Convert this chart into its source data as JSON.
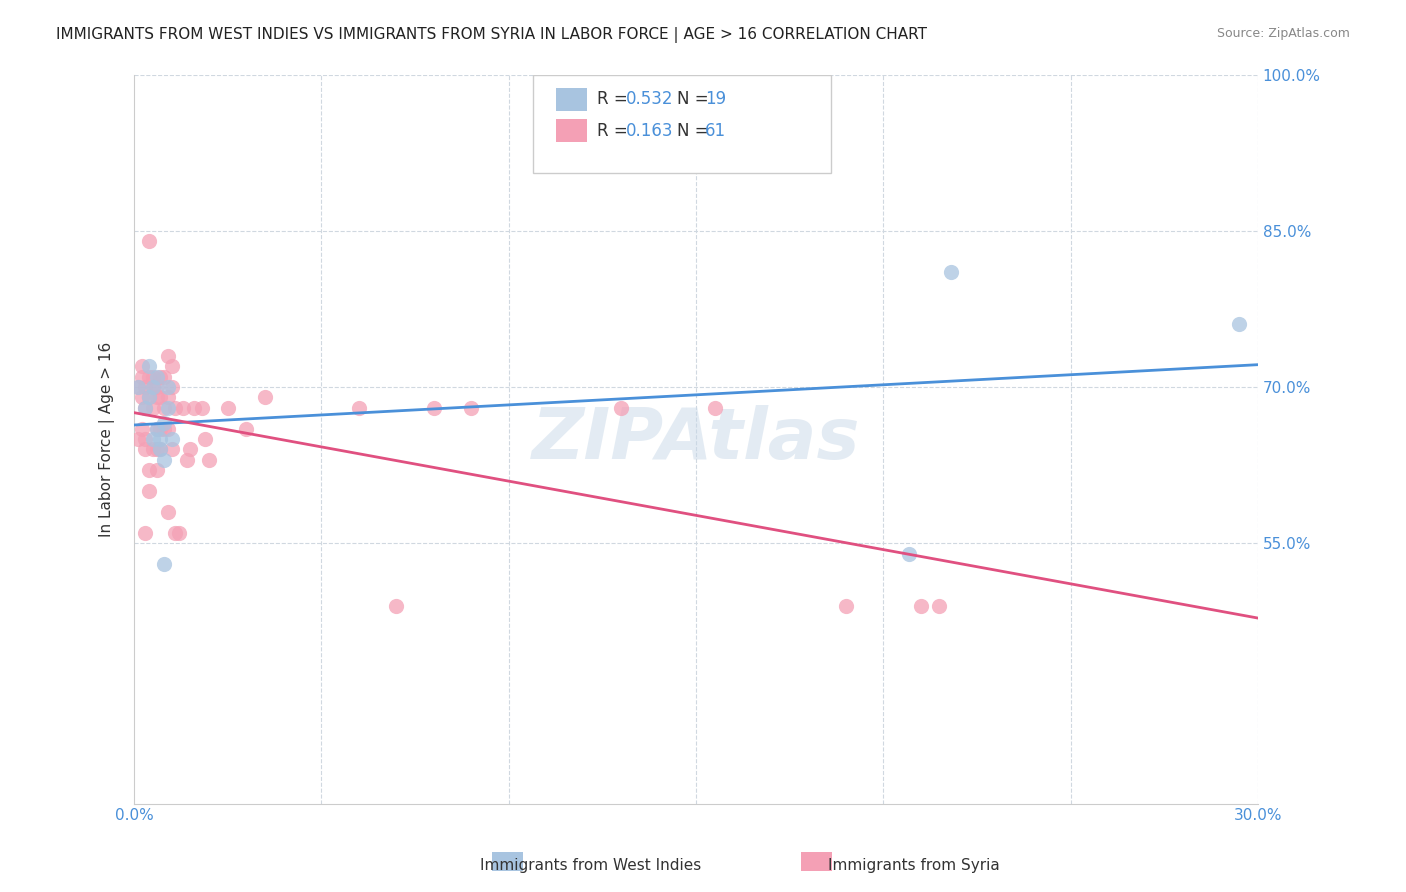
{
  "title": "IMMIGRANTS FROM WEST INDIES VS IMMIGRANTS FROM SYRIA IN LABOR FORCE | AGE > 16 CORRELATION CHART",
  "source": "Source: ZipAtlas.com",
  "xlabel_bottom": "",
  "ylabel": "In Labor Force | Age > 16",
  "x_ticks": [
    0.0,
    0.05,
    0.1,
    0.15,
    0.2,
    0.25,
    0.3
  ],
  "x_tick_labels": [
    "0.0%",
    "",
    "",
    "",
    "",
    "",
    "30.0%"
  ],
  "x_ticklabels_show": [
    0,
    0.05,
    0.1,
    0.15,
    0.2,
    0.25,
    0.3
  ],
  "y_ticks": [
    0.3,
    0.4,
    0.5,
    0.55,
    0.6,
    0.65,
    0.7,
    0.75,
    0.8,
    0.85,
    0.9,
    0.95,
    1.0
  ],
  "y_tick_labels_right": [
    "",
    "",
    "",
    "55.0%",
    "",
    "",
    "70.0%",
    "",
    "",
    "85.0%",
    "",
    "",
    "100.0%"
  ],
  "xlim": [
    0.0,
    0.3
  ],
  "ylim": [
    0.3,
    1.0
  ],
  "r_west_indies": 0.532,
  "n_west_indies": 19,
  "r_syria": 0.163,
  "n_syria": 61,
  "legend_label_1": "Immigrants from West Indies",
  "legend_label_2": "Immigrants from Syria",
  "color_west_indies": "#a8c4e0",
  "color_syria": "#f4a0b5",
  "line_color_west_indies": "#4a90d9",
  "line_color_syria": "#e05080",
  "watermark": "ZIPAtlas",
  "watermark_color": "#c8d8e8",
  "west_indies_x": [
    0.001,
    0.003,
    0.004,
    0.004,
    0.005,
    0.005,
    0.006,
    0.006,
    0.007,
    0.007,
    0.008,
    0.008,
    0.008,
    0.009,
    0.009,
    0.01,
    0.207,
    0.218,
    0.295
  ],
  "west_indies_y": [
    0.7,
    0.68,
    0.72,
    0.69,
    0.7,
    0.65,
    0.66,
    0.71,
    0.65,
    0.64,
    0.665,
    0.63,
    0.53,
    0.68,
    0.7,
    0.65,
    0.54,
    0.81,
    0.76
  ],
  "syria_x": [
    0.001,
    0.001,
    0.002,
    0.002,
    0.002,
    0.002,
    0.003,
    0.003,
    0.003,
    0.003,
    0.003,
    0.004,
    0.004,
    0.004,
    0.004,
    0.004,
    0.005,
    0.005,
    0.005,
    0.005,
    0.006,
    0.006,
    0.006,
    0.006,
    0.006,
    0.007,
    0.007,
    0.007,
    0.007,
    0.008,
    0.008,
    0.008,
    0.009,
    0.009,
    0.009,
    0.009,
    0.01,
    0.01,
    0.01,
    0.011,
    0.011,
    0.012,
    0.013,
    0.014,
    0.015,
    0.016,
    0.018,
    0.019,
    0.02,
    0.025,
    0.03,
    0.035,
    0.06,
    0.07,
    0.08,
    0.09,
    0.13,
    0.155,
    0.19,
    0.21,
    0.215
  ],
  "syria_y": [
    0.7,
    0.65,
    0.71,
    0.72,
    0.69,
    0.66,
    0.68,
    0.65,
    0.7,
    0.64,
    0.56,
    0.84,
    0.71,
    0.69,
    0.62,
    0.6,
    0.7,
    0.71,
    0.68,
    0.64,
    0.7,
    0.69,
    0.66,
    0.64,
    0.62,
    0.71,
    0.69,
    0.66,
    0.64,
    0.71,
    0.68,
    0.66,
    0.73,
    0.69,
    0.66,
    0.58,
    0.72,
    0.7,
    0.64,
    0.68,
    0.56,
    0.56,
    0.68,
    0.63,
    0.64,
    0.68,
    0.68,
    0.65,
    0.63,
    0.68,
    0.66,
    0.69,
    0.68,
    0.49,
    0.68,
    0.68,
    0.68,
    0.68,
    0.49,
    0.49,
    0.49
  ]
}
